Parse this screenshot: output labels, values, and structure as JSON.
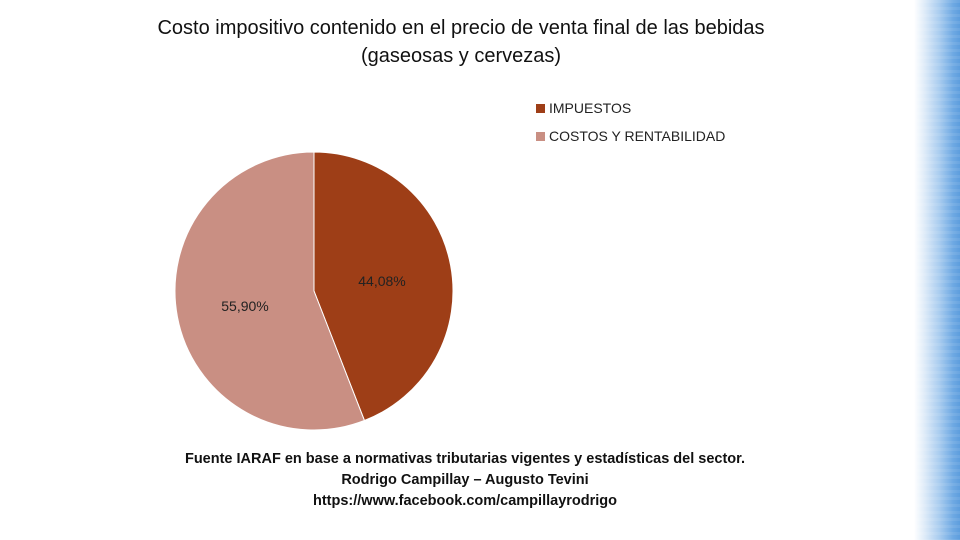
{
  "chart_data": {
    "type": "pie",
    "title": "Costo impositivo contenido en el precio de venta final de las bebidas (gaseosas y cervezas)",
    "series": [
      {
        "name": "IMPUESTOS",
        "value": 44.08,
        "label": "44,08%",
        "color": "#9e3e17"
      },
      {
        "name": "COSTOS Y RENTABILIDAD",
        "value": 55.9,
        "label": "55,90%",
        "color": "#c98f83"
      }
    ],
    "legend_position": "top-right"
  },
  "footer": {
    "source_line": "Fuente IARAF en base a normativas tributarias vigentes y estadísticas del sector.",
    "authors": "Rodrigo Campillay – Augusto Tevini",
    "url": "https://www.facebook.com/campillayrodrigo"
  }
}
